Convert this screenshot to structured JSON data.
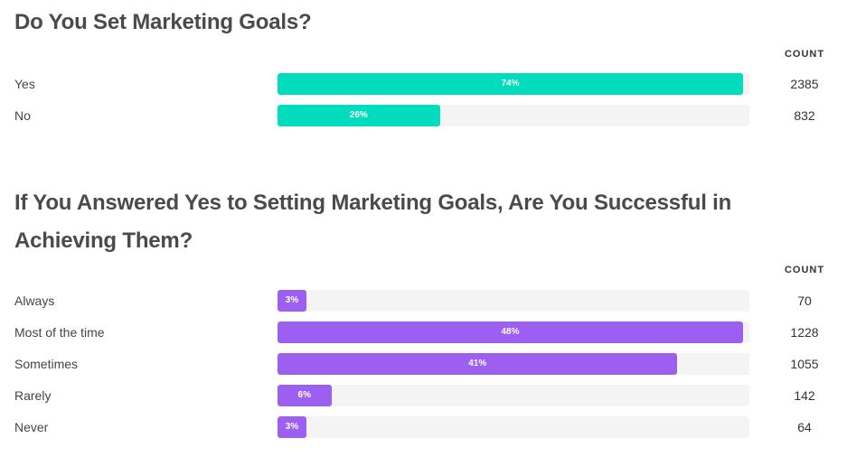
{
  "chart_data": [
    {
      "type": "bar",
      "orientation": "horizontal",
      "title": "Do You Set Marketing Goals?",
      "count_header": "COUNT",
      "color": "#00dcbc",
      "track_color": "#f4f4f4",
      "categories": [
        "Yes",
        "No"
      ],
      "percent_labels": [
        "74%",
        "26%"
      ],
      "values": [
        2385,
        832
      ]
    },
    {
      "type": "bar",
      "orientation": "horizontal",
      "title": "If You Answered Yes to Setting Marketing Goals, Are You Successful in Achieving Them?",
      "count_header": "COUNT",
      "color": "#9c5ff0",
      "track_color": "#f4f4f4",
      "categories": [
        "Always",
        "Most of the time",
        "Sometimes",
        "Rarely",
        "Never"
      ],
      "percent_labels": [
        "3%",
        "48%",
        "41%",
        "6%",
        "3%"
      ],
      "values": [
        70,
        1228,
        1055,
        142,
        64
      ]
    }
  ]
}
